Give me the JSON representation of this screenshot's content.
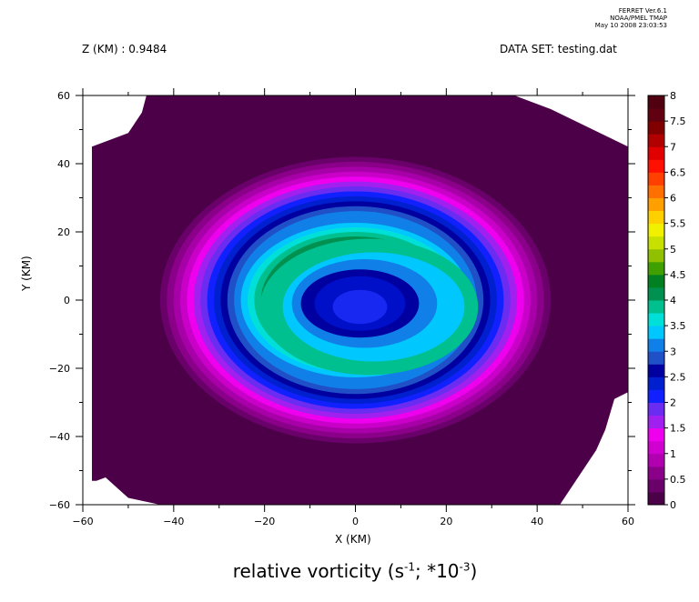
{
  "stamp": {
    "line1": "FERRET  Ver.6.1",
    "line2": "NOAA/PMEL TMAP",
    "line3": "May 10 2008 23:03:53"
  },
  "header": {
    "z_label": "Z (KM) : 0.9484",
    "dataset_label": "DATA SET: testing.dat"
  },
  "chart_data": {
    "type": "heatmap",
    "title": "relative vorticity",
    "title_units_base": "(s",
    "title_exp1": "-1",
    "title_mid": "; *10",
    "title_exp2": "-3",
    "title_end": ")",
    "xlabel": "X (KM)",
    "ylabel": "Y (KM)",
    "xlim": [
      -60,
      60
    ],
    "ylim": [
      -60,
      60
    ],
    "x_ticks": [
      -60,
      -40,
      -20,
      0,
      20,
      40,
      60
    ],
    "y_ticks": [
      -60,
      -40,
      -20,
      0,
      20,
      40,
      60
    ],
    "colorbar_levels": [
      0,
      0.5,
      1,
      1.5,
      2,
      2.5,
      3,
      3.5,
      4,
      4.5,
      5,
      5.5,
      6,
      6.5,
      7,
      7.5,
      8
    ],
    "colorbar_labels": [
      "0",
      "0.5",
      "1",
      "1.5",
      "2",
      "2.5",
      "3",
      "3.5",
      "4",
      "4.5",
      "5",
      "5.5",
      "6",
      "6.5",
      "7",
      "7.5",
      "8"
    ],
    "colorbar_colors": [
      "#4b0048",
      "#6a006a",
      "#8a0088",
      "#b000b0",
      "#d000d0",
      "#ee00ee",
      "#a020f0",
      "#6a2cf0",
      "#1020ff",
      "#0020d0",
      "#0000a0",
      "#2050c8",
      "#1080e8",
      "#00c8ff",
      "#00e0d8",
      "#00c090",
      "#009050",
      "#008020",
      "#40a000",
      "#90c000",
      "#c8e000",
      "#f0f000",
      "#ffd000",
      "#ffa000",
      "#ff7000",
      "#ff4000",
      "#ff1000",
      "#e00000",
      "#b00000",
      "#800000",
      "#600010",
      "#500010"
    ],
    "contour_bands": [
      {
        "level": 0.25,
        "color": "#6a006a"
      },
      {
        "level": 0.5,
        "color": "#8a0088"
      },
      {
        "level": 0.75,
        "color": "#a800a8"
      },
      {
        "level": 1.0,
        "color": "#c800c8"
      },
      {
        "level": 1.25,
        "color": "#ee00ee"
      },
      {
        "level": 1.5,
        "color": "#a020f0"
      },
      {
        "level": 1.75,
        "color": "#6a2cf0"
      },
      {
        "level": 2.0,
        "color": "#1020ff"
      },
      {
        "level": 2.25,
        "color": "#0020d0"
      },
      {
        "level": 2.5,
        "color": "#0000a0"
      },
      {
        "level": 2.75,
        "color": "#2050c8"
      },
      {
        "level": 3.0,
        "color": "#1080e8"
      },
      {
        "level": 3.25,
        "color": "#00c8ff"
      },
      {
        "level": 3.5,
        "color": "#00e0d8"
      },
      {
        "level": 3.75,
        "color": "#00c090"
      },
      {
        "level": 4.0,
        "color": "#009050"
      }
    ]
  }
}
